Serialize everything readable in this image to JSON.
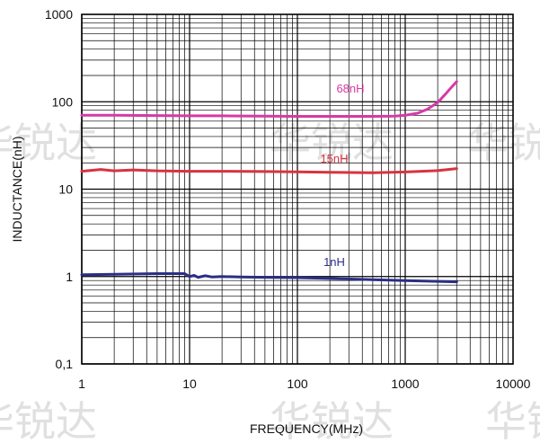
{
  "chart_data": {
    "type": "line",
    "title": "",
    "xlabel": "FREQUENCY(MHz)",
    "ylabel": "INDUCTANCE(nH)",
    "x_scale": "log",
    "y_scale": "log",
    "xlim": [
      1,
      10000
    ],
    "ylim": [
      0.1,
      1000
    ],
    "x_ticks": [
      "1",
      "10",
      "100",
      "1000",
      "10000"
    ],
    "y_ticks": [
      "0,1",
      "1",
      "10",
      "100",
      "1000"
    ],
    "grid": true,
    "series": [
      {
        "name": "68nH",
        "color": "#d63aa6",
        "x": [
          1,
          2,
          5,
          10,
          20,
          50,
          100,
          200,
          500,
          800,
          1000,
          1300,
          1600,
          2000,
          2400,
          2700,
          3000
        ],
        "y": [
          70,
          70,
          69.5,
          69,
          69,
          68.5,
          68,
          68,
          68,
          68.5,
          70,
          74,
          82,
          98,
          125,
          148,
          170
        ]
      },
      {
        "name": "15nH",
        "color": "#d8333f",
        "x": [
          1,
          1.5,
          2,
          3,
          5,
          10,
          20,
          50,
          100,
          200,
          500,
          1000,
          2000,
          3000
        ],
        "y": [
          16,
          16.8,
          16.2,
          16.6,
          16.2,
          16,
          16,
          15.9,
          15.8,
          15.6,
          15.4,
          15.7,
          16.3,
          17.2
        ]
      },
      {
        "name": "1nH",
        "color": "#2b2e84",
        "x": [
          1,
          2,
          5,
          9,
          10,
          11,
          12,
          14,
          16,
          20,
          30,
          50,
          100,
          200,
          500,
          1000,
          2000,
          3000
        ],
        "y": [
          1.05,
          1.06,
          1.08,
          1.08,
          1.0,
          1.03,
          0.98,
          1.02,
          0.99,
          1.0,
          0.99,
          0.98,
          0.97,
          0.95,
          0.92,
          0.9,
          0.88,
          0.87
        ]
      }
    ]
  },
  "watermark": "华锐达"
}
